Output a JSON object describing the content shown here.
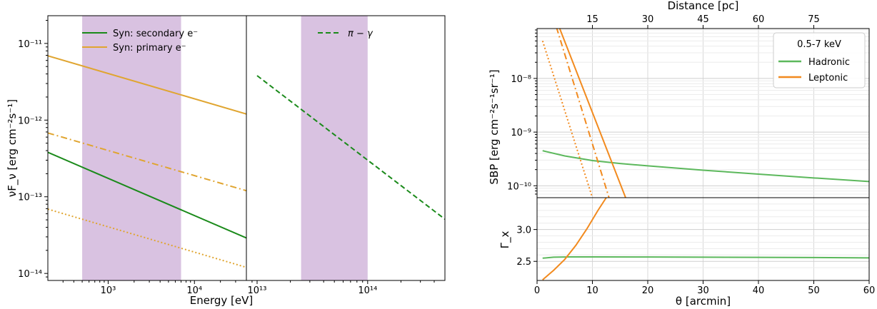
{
  "chart_data": [
    {
      "type": "line",
      "panel": "left",
      "xscale": "log",
      "yscale": "log",
      "xlim": [
        200,
        40000
      ],
      "ylim": [
        8.1e-15,
        2.3e-11
      ],
      "xlabel": "Energy [eV]",
      "ylabel": "νF_ν [erg cm⁻²s⁻¹]",
      "x_ticks": [
        {
          "v": 1000,
          "label": "10³"
        },
        {
          "v": 10000,
          "label": "10⁴"
        }
      ],
      "y_ticks": [
        {
          "v": 1e-14,
          "label": "10⁻¹⁴"
        },
        {
          "v": 1e-13,
          "label": "10⁻¹³"
        },
        {
          "v": 1e-12,
          "label": "10⁻¹²"
        },
        {
          "v": 1e-11,
          "label": "10⁻¹¹"
        }
      ],
      "shaded_band": {
        "x": [
          500,
          7000
        ],
        "color": "#d9c2e1"
      },
      "legend": [
        {
          "label": "Syn: secondary e⁻",
          "color": "#1a8a1a",
          "style": "solid"
        },
        {
          "label": "Syn: primary e⁻",
          "color": "#e0a530",
          "style": "solid"
        }
      ],
      "legend_position": "top-left",
      "series": [
        {
          "name": "Syn: primary e⁻",
          "color": "#e0a530",
          "style": "solid",
          "x": [
            200,
            40000
          ],
          "y": [
            6.9e-12,
            1.2e-12
          ]
        },
        {
          "color": "#e0a530",
          "style": "dashdot",
          "x": [
            200,
            40000
          ],
          "y": [
            6.8e-13,
            1.2e-13
          ]
        },
        {
          "color": "#e0a530",
          "style": "dotted",
          "x": [
            200,
            40000
          ],
          "y": [
            6.9e-14,
            1.2e-14
          ]
        },
        {
          "name": "Syn: secondary e⁻",
          "color": "#1a8a1a",
          "style": "solid",
          "x": [
            200,
            40000
          ],
          "y": [
            3.8e-13,
            2.9e-14
          ]
        }
      ]
    },
    {
      "type": "line",
      "panel": "middle",
      "xscale": "log",
      "yscale": "log",
      "xlim": [
        8000000000000,
        500000000000000
      ],
      "ylim": [
        8.1e-15,
        2.3e-11
      ],
      "x_ticks": [
        {
          "v": 10000000000000,
          "label": "10¹³"
        },
        {
          "v": 100000000000000,
          "label": "10¹⁴"
        }
      ],
      "shaded_band": {
        "x": [
          25000000000000,
          100000000000000
        ],
        "color": "#d9c2e1"
      },
      "legend": [
        {
          "label": "π − γ",
          "color": "#1a8a1a",
          "style": "dashed"
        }
      ],
      "legend_position": "top-right",
      "series": [
        {
          "name": "π − γ",
          "color": "#1a8a1a",
          "style": "dashed",
          "x": [
            10000000000000,
            500000000000000
          ],
          "y": [
            3.8e-12,
            5.1e-14
          ]
        }
      ]
    },
    {
      "type": "line",
      "panel": "right-top",
      "xscale": "linear",
      "yscale": "log",
      "xlim": [
        0,
        60
      ],
      "ylim": [
        6e-11,
        8.5e-08
      ],
      "ylabel": "SBP [erg cm⁻²s⁻¹sr⁻¹]",
      "top_xlabel": "Distance [pc]",
      "top_x_ticks": [
        {
          "v": 10,
          "label": "15"
        },
        {
          "v": 20,
          "label": "30"
        },
        {
          "v": 30,
          "label": "45"
        },
        {
          "v": 40,
          "label": "60"
        },
        {
          "v": 50,
          "label": "75"
        }
      ],
      "y_ticks": [
        {
          "v": 1e-10,
          "label": "10⁻¹⁰"
        },
        {
          "v": 1e-09,
          "label": "10⁻⁹"
        },
        {
          "v": 1e-08,
          "label": "10⁻⁸"
        }
      ],
      "grid": true,
      "legend_title": "0.5-7 keV",
      "legend": [
        {
          "label": "Hadronic",
          "color": "#5cb85c",
          "style": "solid"
        },
        {
          "label": "Leptonic",
          "color": "#f28a1e",
          "style": "solid"
        }
      ],
      "legend_position": "top-right",
      "series": [
        {
          "name": "Hadronic",
          "color": "#5cb85c",
          "style": "solid",
          "x": [
            1,
            5,
            10,
            15,
            20,
            30,
            40,
            50,
            60
          ],
          "y": [
            4.5e-10,
            3.6e-10,
            2.95e-10,
            2.6e-10,
            2.35e-10,
            1.95e-10,
            1.65e-10,
            1.4e-10,
            1.2e-10
          ]
        },
        {
          "name": "Leptonic",
          "color": "#f28a1e",
          "style": "solid",
          "x": [
            4,
            16
          ],
          "y": [
            9e-08,
            6e-11
          ]
        },
        {
          "color": "#f28a1e",
          "style": "dashdot",
          "x": [
            3.5,
            13
          ],
          "y": [
            9e-08,
            6e-11
          ]
        },
        {
          "color": "#f28a1e",
          "style": "dotted",
          "x": [
            1,
            10
          ],
          "y": [
            5e-08,
            6e-11
          ]
        }
      ]
    },
    {
      "type": "line",
      "panel": "right-bottom",
      "xscale": "linear",
      "yscale": "linear",
      "xlim": [
        0,
        60
      ],
      "ylim": [
        2.2,
        3.5
      ],
      "xlabel": "θ [arcmin]",
      "ylabel": "Γ_x",
      "x_ticks": [
        {
          "v": 0,
          "label": "0"
        },
        {
          "v": 10,
          "label": "10"
        },
        {
          "v": 20,
          "label": "20"
        },
        {
          "v": 30,
          "label": "30"
        },
        {
          "v": 40,
          "label": "40"
        },
        {
          "v": 50,
          "label": "50"
        },
        {
          "v": 60,
          "label": "60"
        }
      ],
      "y_ticks": [
        {
          "v": 2.5,
          "label": "2.5"
        },
        {
          "v": 3.0,
          "label": "3.0"
        }
      ],
      "grid": true,
      "series": [
        {
          "name": "Hadronic",
          "color": "#5cb85c",
          "style": "solid",
          "x": [
            1,
            3,
            6,
            10,
            20,
            30,
            40,
            50,
            60
          ],
          "y": [
            2.55,
            2.565,
            2.57,
            2.57,
            2.568,
            2.565,
            2.563,
            2.56,
            2.555
          ]
        },
        {
          "name": "Leptonic",
          "color": "#f28a1e",
          "style": "solid",
          "x": [
            1,
            3,
            5,
            7,
            9,
            11,
            12.5
          ],
          "y": [
            2.21,
            2.36,
            2.53,
            2.75,
            3.01,
            3.3,
            3.5
          ]
        }
      ]
    }
  ]
}
